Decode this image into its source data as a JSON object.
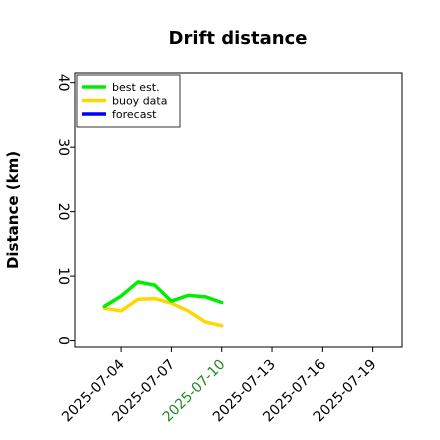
{
  "chart_data": {
    "type": "line",
    "title": "Drift distance",
    "xlabel": "",
    "ylabel": "Distance (km)",
    "x_ticks": [
      "2025-07-04",
      "2025-07-07",
      "2025-07-10",
      "2025-07-13",
      "2025-07-16",
      "2025-07-19"
    ],
    "x_tick_colors": [
      "#000000",
      "#000000",
      "#228b22",
      "#000000",
      "#000000",
      "#000000"
    ],
    "y_ticks": [
      0,
      10,
      20,
      30,
      40
    ],
    "ylim": [
      -1,
      41.5
    ],
    "xlim": [
      "2025-07-01T06:00",
      "2025-07-20T18:00"
    ],
    "legend_position": "top-left",
    "grid": false,
    "series": [
      {
        "name": "best est.",
        "color": "#00ee00",
        "x": [
          "2025-07-03",
          "2025-07-04",
          "2025-07-05",
          "2025-07-06",
          "2025-07-07",
          "2025-07-08",
          "2025-07-09",
          "2025-07-10"
        ],
        "y": [
          5.3,
          6.9,
          9.1,
          8.6,
          6.1,
          7.0,
          6.8,
          5.9
        ]
      },
      {
        "name": "buoy data",
        "color": "#ffd700",
        "x": [
          "2025-07-03",
          "2025-07-04",
          "2025-07-05",
          "2025-07-06",
          "2025-07-07",
          "2025-07-08",
          "2025-07-09",
          "2025-07-10"
        ],
        "y": [
          5.0,
          4.6,
          6.4,
          6.5,
          5.8,
          4.6,
          2.9,
          2.3
        ]
      },
      {
        "name": "forecast",
        "color": "#0000ff",
        "x": [],
        "y": []
      }
    ]
  }
}
